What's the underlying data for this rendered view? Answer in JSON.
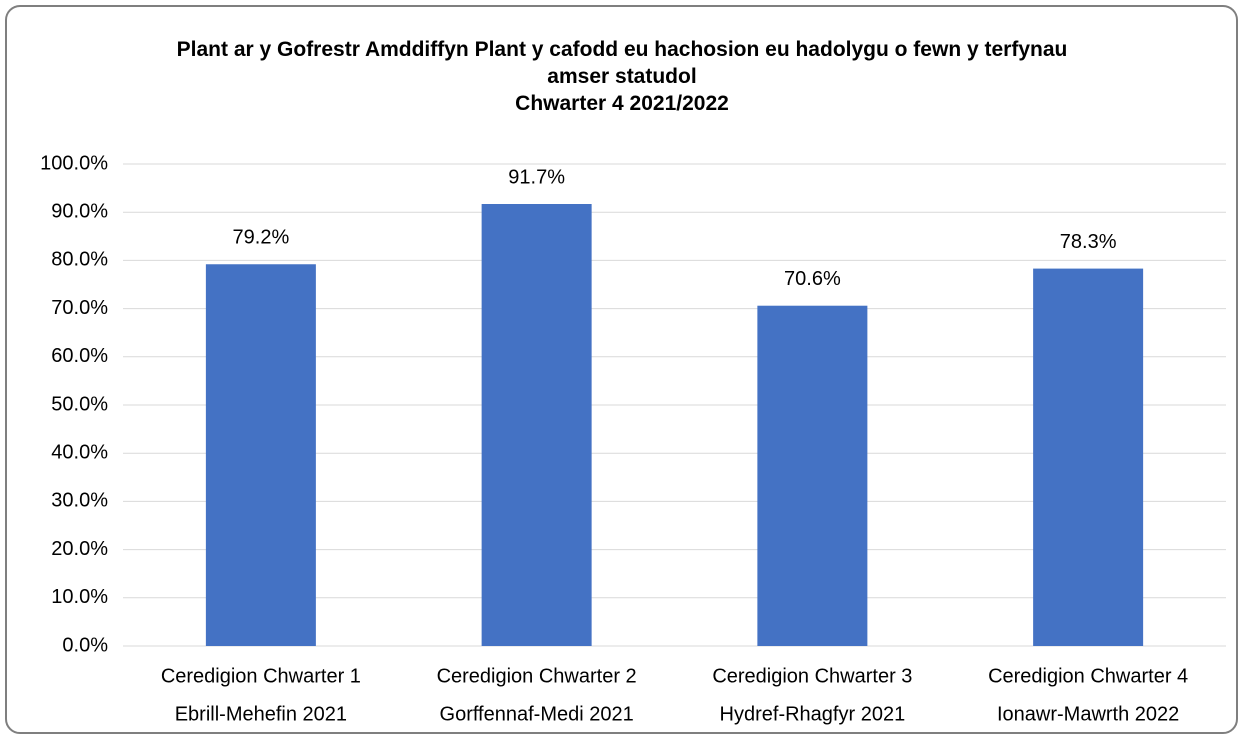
{
  "chart_data": {
    "type": "bar",
    "title": "Plant ar y Gofrestr Amddiffyn Plant y cafodd eu hachosion eu hadolygu o fewn y terfynau amser statudol",
    "subtitle": "Chwarter 4 2021/2022",
    "categories": [
      [
        "Ceredigion Chwarter 1",
        "Ebrill-Mehefin 2021"
      ],
      [
        "Ceredigion Chwarter 2",
        "Gorffennaf-Medi 2021"
      ],
      [
        "Ceredigion Chwarter 3",
        "Hydref-Rhagfyr 2021"
      ],
      [
        "Ceredigion Chwarter 4",
        "Ionawr-Mawrth 2022"
      ]
    ],
    "values": [
      79.2,
      91.7,
      70.6,
      78.3
    ],
    "value_labels": [
      "79.2%",
      "91.7%",
      "70.6%",
      "78.3%"
    ],
    "color": "#4472c4",
    "ylim": [
      0,
      100
    ],
    "yticks": [
      {
        "value": 0,
        "label": "0.0%"
      },
      {
        "value": 10,
        "label": "10.0%"
      },
      {
        "value": 20,
        "label": "20.0%"
      },
      {
        "value": 30,
        "label": "30.0%"
      },
      {
        "value": 40,
        "label": "40.0%"
      },
      {
        "value": 50,
        "label": "50.0%"
      },
      {
        "value": 60,
        "label": "60.0%"
      },
      {
        "value": 70,
        "label": "70.0%"
      },
      {
        "value": 80,
        "label": "80.0%"
      },
      {
        "value": 90,
        "label": "90.0%"
      },
      {
        "value": 100,
        "label": "100.0%"
      }
    ],
    "grid": true
  }
}
